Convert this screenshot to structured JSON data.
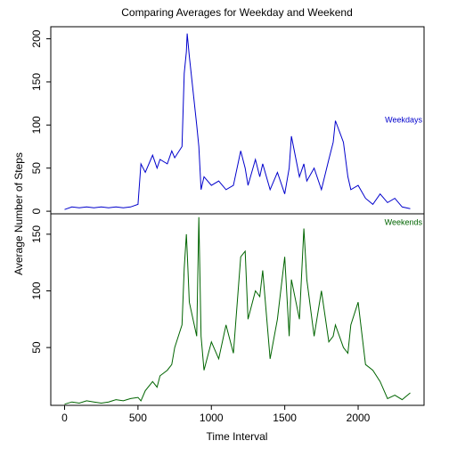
{
  "chart_data": [
    {
      "type": "line",
      "title": "Comparing Averages for Weekday and Weekend",
      "ylabel": "Average Number of Steps",
      "x": [
        0,
        50,
        100,
        150,
        200,
        250,
        300,
        350,
        400,
        450,
        500,
        520,
        550,
        600,
        630,
        650,
        700,
        730,
        750,
        800,
        815,
        830,
        835,
        850,
        900,
        915,
        930,
        950,
        1000,
        1050,
        1100,
        1150,
        1200,
        1230,
        1250,
        1300,
        1330,
        1350,
        1400,
        1450,
        1500,
        1530,
        1545,
        1600,
        1630,
        1650,
        1700,
        1750,
        1800,
        1830,
        1845,
        1900,
        1930,
        1950,
        2000,
        2050,
        2100,
        2150,
        2200,
        2250,
        2300,
        2355
      ],
      "series": [
        {
          "name": "Weekdays",
          "color": "#0000cc",
          "values": [
            2,
            5,
            4,
            5,
            4,
            5,
            4,
            5,
            4,
            5,
            8,
            55,
            45,
            65,
            50,
            60,
            55,
            70,
            62,
            75,
            160,
            185,
            206,
            180,
            100,
            75,
            25,
            40,
            30,
            35,
            25,
            30,
            70,
            50,
            30,
            60,
            40,
            55,
            25,
            45,
            20,
            50,
            87,
            40,
            55,
            35,
            50,
            25,
            60,
            80,
            105,
            80,
            40,
            25,
            30,
            15,
            8,
            20,
            10,
            15,
            5,
            3
          ]
        }
      ],
      "xlim": [
        -94,
        2449
      ],
      "ylim": [
        -3,
        214
      ],
      "yticks": [
        0,
        50,
        100,
        150,
        200
      ]
    },
    {
      "type": "line",
      "xlabel": "Time Interval",
      "x": [
        0,
        50,
        100,
        150,
        200,
        250,
        300,
        350,
        400,
        450,
        500,
        520,
        550,
        600,
        630,
        650,
        700,
        730,
        750,
        800,
        815,
        830,
        835,
        850,
        900,
        915,
        930,
        950,
        1000,
        1050,
        1100,
        1150,
        1200,
        1230,
        1250,
        1300,
        1330,
        1350,
        1400,
        1450,
        1500,
        1530,
        1545,
        1600,
        1630,
        1650,
        1700,
        1750,
        1800,
        1830,
        1845,
        1900,
        1930,
        1950,
        2000,
        2050,
        2100,
        2150,
        2200,
        2250,
        2300,
        2355
      ],
      "series": [
        {
          "name": "Weekends",
          "color": "#006400",
          "values": [
            0,
            2,
            1,
            3,
            2,
            1,
            2,
            4,
            3,
            5,
            6,
            3,
            12,
            20,
            15,
            25,
            30,
            35,
            50,
            70,
            120,
            150,
            135,
            90,
            60,
            165,
            60,
            30,
            55,
            40,
            70,
            45,
            130,
            135,
            75,
            100,
            95,
            118,
            40,
            75,
            130,
            60,
            110,
            75,
            155,
            110,
            60,
            100,
            55,
            60,
            70,
            50,
            45,
            70,
            90,
            35,
            30,
            20,
            5,
            8,
            4,
            10
          ]
        }
      ],
      "xlim": [
        -94,
        2449
      ],
      "ylim": [
        -1,
        168
      ],
      "yticks": [
        50,
        100,
        150
      ],
      "xticks": [
        0,
        500,
        1000,
        1500,
        2000
      ]
    }
  ]
}
